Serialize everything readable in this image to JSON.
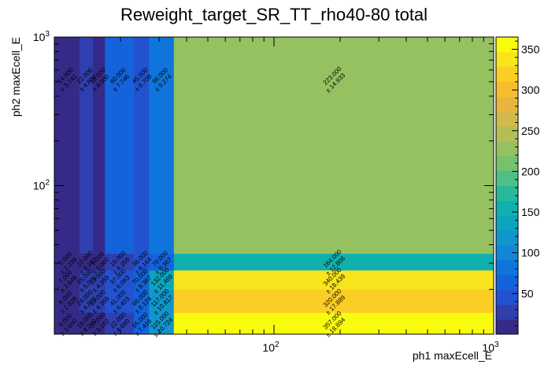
{
  "chart_data": {
    "type": "heatmap",
    "title": "Reweight_target_SR_TT_rho40-80 total",
    "xlabel": "ph1 maxEcell_E",
    "ylabel": "ph2 maxEcell_E",
    "xscale": "log",
    "yscale": "log",
    "xlim": [
      10,
      1000
    ],
    "ylim": [
      10,
      1000
    ],
    "zlim": [
      0,
      365
    ],
    "x_edges": [
      10,
      13,
      15,
      17,
      23,
      27,
      35,
      1000
    ],
    "y_edges": [
      10,
      14,
      20,
      27,
      35,
      1000
    ],
    "x_ticks": [
      {
        "value": 100,
        "base": "10",
        "exp": "2"
      },
      {
        "value": 1000,
        "base": "10",
        "exp": "3"
      }
    ],
    "y_ticks": [
      {
        "value": 100,
        "base": "10",
        "exp": "2"
      },
      {
        "value": 1000,
        "base": "10",
        "exp": "3"
      }
    ],
    "colorbar_ticks": [
      50,
      100,
      150,
      200,
      250,
      300,
      350
    ],
    "palette": [
      "#352a87",
      "#2f3fae",
      "#2352d0",
      "#1463dc",
      "#0f75dc",
      "#1386d5",
      "#1196cc",
      "#0ba5be",
      "#10b1ad",
      "#28b99b",
      "#4fbf85",
      "#74c26e",
      "#96c160",
      "#b5bd55",
      "#d1b94b",
      "#e8b63e",
      "#f8bd2f",
      "#fbce26",
      "#f7e41d",
      "#f9fb0e"
    ],
    "cells": [
      {
        "xi": 0,
        "yi": 0,
        "v": 9,
        "label": "9.000",
        "err": "± 3.000"
      },
      {
        "xi": 1,
        "yi": 0,
        "v": 18,
        "label": "18.000",
        "err": "± 4.243"
      },
      {
        "xi": 2,
        "yi": 0,
        "v": 10,
        "label": "10.000",
        "err": "± 3.162"
      },
      {
        "xi": 3,
        "yi": 0,
        "v": 22,
        "label": "22.000",
        "err": "± 4.690"
      },
      {
        "xi": 4,
        "yi": 0,
        "v": 55,
        "label": "55.000",
        "err": "± 7.416"
      },
      {
        "xi": 5,
        "yi": 0,
        "v": 115,
        "label": "115.000",
        "err": "± 10.724"
      },
      {
        "xi": 6,
        "yi": 0,
        "v": 357,
        "label": "357.000",
        "err": "± 18.894"
      },
      {
        "xi": 0,
        "yi": 1,
        "v": 8,
        "label": "8.000",
        "err": "± 2.828"
      },
      {
        "xi": 1,
        "yi": 1,
        "v": 24,
        "label": "24.000",
        "err": "± 4.899"
      },
      {
        "xi": 2,
        "yi": 1,
        "v": 19,
        "label": "19.000",
        "err": "± 4.359"
      },
      {
        "xi": 3,
        "yi": 1,
        "v": 41,
        "label": "41.000",
        "err": "± 6.403"
      },
      {
        "xi": 4,
        "yi": 1,
        "v": 66,
        "label": "66.000",
        "err": "± 8.124"
      },
      {
        "xi": 5,
        "yi": 1,
        "v": 117,
        "label": "117.000",
        "err": "± 10.817"
      },
      {
        "xi": 6,
        "yi": 1,
        "v": 320,
        "label": "320.000",
        "err": "± 17.889"
      },
      {
        "xi": 0,
        "yi": 2,
        "v": 7,
        "label": "7.000",
        "err": "± 2.646"
      },
      {
        "xi": 1,
        "yi": 2,
        "v": 25,
        "label": "25.000",
        "err": "± 5.000"
      },
      {
        "xi": 2,
        "yi": 2,
        "v": 19,
        "label": "19.000",
        "err": "± 4.359"
      },
      {
        "xi": 3,
        "yi": 2,
        "v": 37,
        "label": "37.000",
        "err": "± 6.083"
      },
      {
        "xi": 4,
        "yi": 2,
        "v": 70,
        "label": "70.000",
        "err": "± 8.367"
      },
      {
        "xi": 5,
        "yi": 2,
        "v": 132,
        "label": "132.000",
        "err": "± 11.489"
      },
      {
        "xi": 6,
        "yi": 2,
        "v": 340,
        "label": "340.000",
        "err": "± 18.439"
      },
      {
        "xi": 0,
        "yi": 3,
        "v": 5,
        "label": "5.000",
        "err": "± 2.236"
      },
      {
        "xi": 1,
        "yi": 3,
        "v": 10,
        "label": "10.000",
        "err": "± 3.162"
      },
      {
        "xi": 2,
        "yi": 3,
        "v": 9,
        "label": "9.000",
        "err": "± 3.000"
      },
      {
        "xi": 3,
        "yi": 3,
        "v": 19,
        "label": "19.000",
        "err": "± 4.359"
      },
      {
        "xi": 4,
        "yi": 3,
        "v": 38,
        "label": "38.000",
        "err": "± 6.164"
      },
      {
        "xi": 5,
        "yi": 3,
        "v": 70,
        "label": "70.000",
        "err": "± 8.367"
      },
      {
        "xi": 6,
        "yi": 3,
        "v": 164,
        "label": "164.000",
        "err": "± 12.806"
      },
      {
        "xi": 0,
        "yi": 4,
        "v": 14,
        "label": "14.000",
        "err": "± 3.742"
      },
      {
        "xi": 1,
        "yi": 4,
        "v": 22,
        "label": "22.000",
        "err": "± 4.690"
      },
      {
        "xi": 2,
        "yi": 4,
        "v": 16,
        "label": "16.000",
        "err": "± 4.000"
      },
      {
        "xi": 3,
        "yi": 4,
        "v": 60,
        "label": "60.000",
        "err": "± 7.746"
      },
      {
        "xi": 4,
        "yi": 4,
        "v": 45,
        "label": "45.000",
        "err": "± 6.708"
      },
      {
        "xi": 5,
        "yi": 4,
        "v": 86,
        "label": "86.000",
        "err": "± 9.274"
      },
      {
        "xi": 6,
        "yi": 4,
        "v": 223,
        "label": "223.000",
        "err": "± 14.933"
      }
    ]
  }
}
